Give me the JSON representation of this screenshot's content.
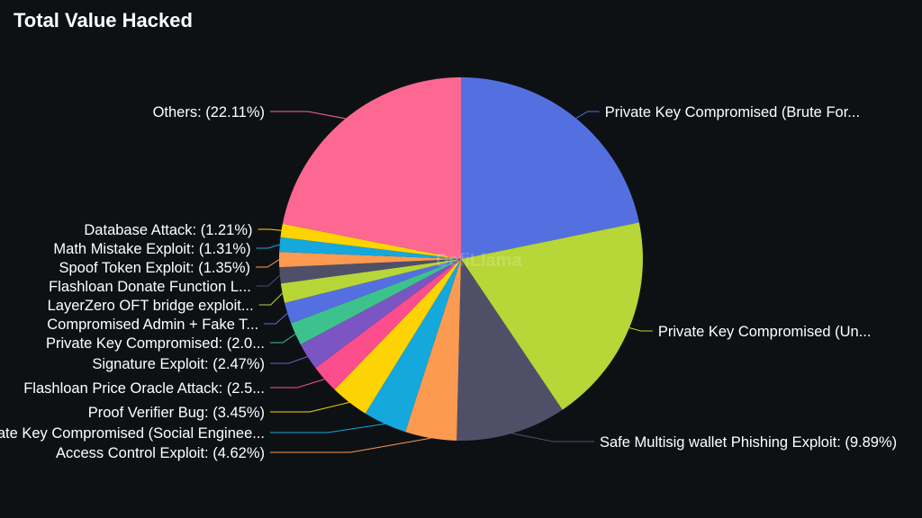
{
  "title": "Total Value Hacked",
  "watermark": "DefiLlama",
  "chart_data": {
    "type": "pie",
    "title": "Total Value Hacked",
    "slices": [
      {
        "label": "Private Key Compromised (Brute For...",
        "value": 22.0,
        "color": "#5470e0"
      },
      {
        "label": "Private Key Compromised (Un...",
        "value": 19.0,
        "color": "#b7d637"
      },
      {
        "label": "Safe Multisig wallet Phishing Exploit: (9.89%)",
        "value": 9.89,
        "color": "#4f5068"
      },
      {
        "label": "Access Control Exploit: (4.62%)",
        "value": 4.62,
        "color": "#fd9a51"
      },
      {
        "label": "Private Key Compromised (Social Enginee...",
        "value": 3.9,
        "color": "#14a8dc"
      },
      {
        "label": "Proof Verifier Bug: (3.45%)",
        "value": 3.45,
        "color": "#fdd303"
      },
      {
        "label": "Flashloan Price Oracle Attack: (2.5...",
        "value": 2.55,
        "color": "#fc4d8c"
      },
      {
        "label": "Signature Exploit: (2.47%)",
        "value": 2.47,
        "color": "#7b55c2"
      },
      {
        "label": "Private Key Compromised: (2.0...",
        "value": 2.05,
        "color": "#3dc28d"
      },
      {
        "label": "Compromised Admin + Fake T...",
        "value": 1.9,
        "color": "#5470e0"
      },
      {
        "label": "LayerZero OFT bridge exploit...",
        "value": 1.75,
        "color": "#b7d637"
      },
      {
        "label": "Flashloan Donate Function L...",
        "value": 1.45,
        "color": "#4f5068"
      },
      {
        "label": "Spoof Token Exploit: (1.35%)",
        "value": 1.35,
        "color": "#fd9a51"
      },
      {
        "label": "Math Mistake Exploit: (1.31%)",
        "value": 1.31,
        "color": "#14a8dc"
      },
      {
        "label": "Database Attack: (1.21%)",
        "value": 1.21,
        "color": "#fdd303"
      },
      {
        "label": "Others: (22.11%)",
        "value": 22.11,
        "color": "#fc6892"
      }
    ]
  }
}
